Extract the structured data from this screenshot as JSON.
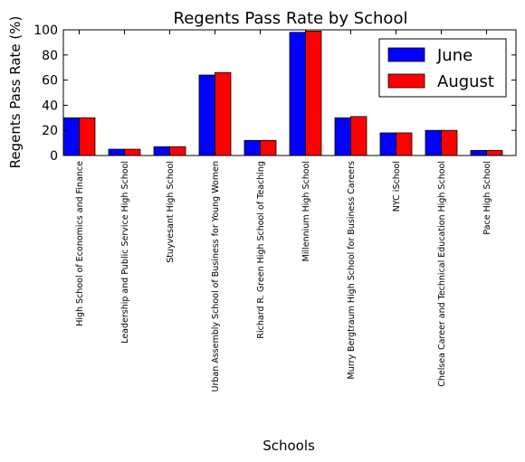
{
  "chart_data": {
    "type": "bar",
    "title": "Regents Pass Rate by School",
    "xlabel": "Schools",
    "ylabel": "Regents Pass Rate (%)",
    "ylim": [
      0,
      100
    ],
    "yticks": [
      "0",
      "20",
      "40",
      "60",
      "80",
      "100"
    ],
    "categories": [
      "High School of Economics and Finance",
      "Leadership and Public Service High School",
      "Stuyvesant High School",
      "Urban Assembly School of Business for Young Women",
      "Richard R. Green High School of Teaching",
      "Millennium High School",
      "Murry Bergtraum High School for Business Careers",
      "NYC iSchool",
      "Chelsea Career and Technical Education High School",
      "Pace High School"
    ],
    "series": [
      {
        "name": "June",
        "color": "#0000ff",
        "values": [
          30,
          5,
          7,
          64,
          12,
          98,
          30,
          18,
          20,
          4
        ]
      },
      {
        "name": "August",
        "color": "#ff0000",
        "values": [
          30,
          5,
          7,
          66,
          12,
          99,
          31,
          18,
          20,
          4
        ]
      }
    ],
    "legend_position": "top-right",
    "grid": false
  }
}
